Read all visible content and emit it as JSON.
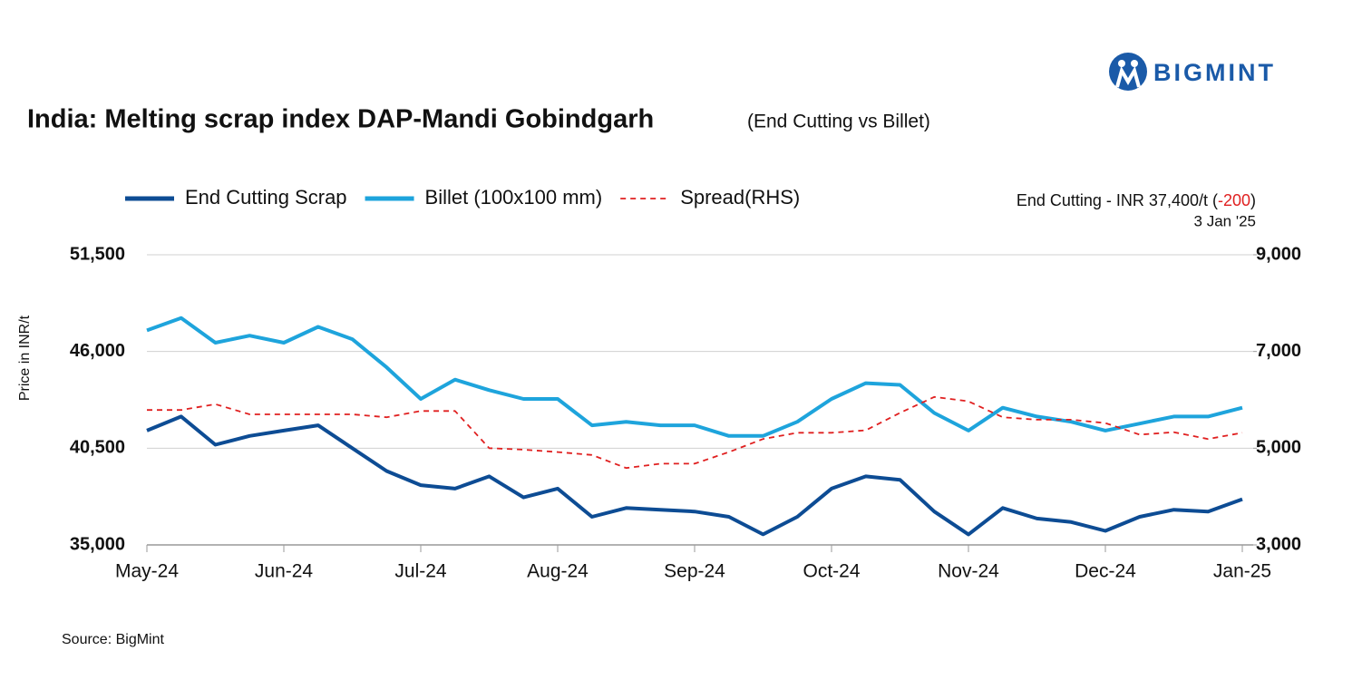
{
  "brand": "BIGMINT",
  "source": "Source: BigMint",
  "chart_data": {
    "type": "line",
    "title": "India: Melting scrap index DAP-Mandi Gobindgarh",
    "subtitle": "(End Cutting vs Billet)",
    "y_label": "Price in INR/t",
    "annotation": {
      "lead": "End Cutting - INR 37,400/t (",
      "change": "-200",
      "close": ")",
      "date": "3 Jan '25"
    },
    "legend": "top-left",
    "grid": true,
    "categories": [
      "May-24",
      null,
      null,
      null,
      "Jun-24",
      null,
      null,
      null,
      "Jul-24",
      null,
      null,
      null,
      "Aug-24",
      null,
      null,
      null,
      "Sep-24",
      null,
      null,
      null,
      "Oct-24",
      null,
      null,
      null,
      "Nov-24",
      null,
      null,
      null,
      "Dec-24",
      null,
      null,
      null,
      "Jan-25"
    ],
    "ylim": [
      35000,
      51500
    ],
    "yticks": [
      {
        "value": 35000,
        "label": "35,000"
      },
      {
        "value": 40500,
        "label": "40,500"
      },
      {
        "value": 46000,
        "label": "46,000"
      },
      {
        "value": 51500,
        "label": "51,500"
      }
    ],
    "y2lim": [
      3000,
      9000
    ],
    "y2ticks": [
      {
        "value": 3000,
        "label": "3,000"
      },
      {
        "value": 5000,
        "label": "5,000"
      },
      {
        "value": 7000,
        "label": "7,000"
      },
      {
        "value": 9000,
        "label": "9,000"
      }
    ],
    "series": [
      {
        "name": "End Cutting Scrap",
        "color": "#0d4c94",
        "dash": false,
        "values": [
          41500,
          42300,
          40700,
          41200,
          41500,
          41800,
          40500,
          39200,
          38400,
          38200,
          38900,
          37700,
          38200,
          36600,
          37100,
          37000,
          36900,
          36600,
          35600,
          36600,
          38200,
          38900,
          38700,
          36900,
          35600,
          37100,
          36500,
          36300,
          35800,
          36600,
          37000,
          36900,
          37600
        ]
      },
      {
        "name": "Billet (100x100 mm)",
        "color": "#1ea4dc",
        "dash": false,
        "values": [
          47200,
          47900,
          46500,
          46900,
          46500,
          47400,
          46700,
          45100,
          43300,
          44400,
          43800,
          43300,
          43300,
          41800,
          42000,
          41800,
          41800,
          41200,
          41200,
          42000,
          43300,
          44200,
          44100,
          42500,
          41500,
          42800,
          42300,
          42000,
          41500,
          41900,
          42300,
          42300,
          42800
        ]
      },
      {
        "name": "Spread(RHS)",
        "color": "#e02020",
        "dash": true,
        "axis": "y2",
        "values": [
          5790,
          5790,
          5910,
          5700,
          5700,
          5700,
          5700,
          5640,
          5770,
          5770,
          5000,
          4970,
          4920,
          4860,
          4590,
          4680,
          4680,
          4920,
          5190,
          5320,
          5320,
          5370,
          5730,
          6060,
          5970,
          5640,
          5590,
          5590,
          5520,
          5280,
          5330,
          5190,
          5320
        ]
      }
    ]
  }
}
